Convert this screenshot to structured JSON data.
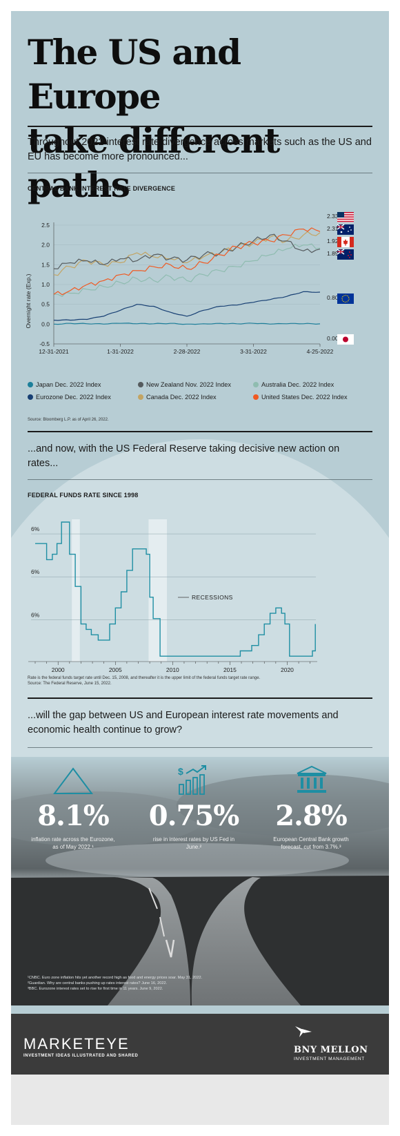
{
  "title_lines": [
    "The US and Europe",
    "take different paths"
  ],
  "intro_text": "Throughout 2022 interest rate divergence across markets such as the US and EU has become more pronounced...",
  "chart1": {
    "title": "CENTRAL BANK INTEREST RATE DIVERGENCE",
    "source": "Source: Bloomberg L.P. as of April 26, 2022."
  },
  "transition_text": "...and now, with the US Federal Reserve taking decisive new action on rates...",
  "chart2": {
    "title": "FEDERAL FUNDS RATE SINCE 1998",
    "recessions_label": "RECESSIONS",
    "note_line1": "Rate is the federal funds target rate until Dec. 15, 2008, and thereafter it is the upper limit of the federal funds target rate range.",
    "note_line2": "Source: The Federal Reserve, June 15, 2022."
  },
  "question_text": "...will the gap between US and European interest rate movements and economic health continue to grow?",
  "stats": [
    {
      "icon": "triangle-icon",
      "value": "8.1%",
      "desc": "inflation rate across the Eurozone, as of May 2022.¹"
    },
    {
      "icon": "rising-bar-chart-dollar-icon",
      "value": "0.75%",
      "desc": "rise in interest rates by US Fed in June.²"
    },
    {
      "icon": "bank-building-icon",
      "value": "2.8%",
      "desc": "European Central Bank growth forecast, cut from 3.7%.³"
    }
  ],
  "footnotes": [
    "¹CNBC. Euro zone inflation hits yet another record high as food and energy prices soar. May 31, 2022.",
    "²Guardian. Why are central banks pushing up rates interest rates? June 16, 2022.",
    "³BBC. Eurozone interest rates set to rise for first time in 11 years. June 9, 2022."
  ],
  "footer": {
    "left_brand": "MARKETEYE",
    "left_tagline": "INVESTMENT IDEAS ILLUSTRATED AND SHARED",
    "right_brand": "BNY MELLON",
    "right_tagline": "INVESTMENT MANAGEMENT"
  },
  "colors": {
    "background": "#b7cdd4",
    "japan": "#1d7f9a",
    "new_zealand": "#555b5e",
    "australia": "#8fbcb0",
    "eurozone": "#173f73",
    "canada": "#c3a463",
    "united_states": "#f05a22",
    "fed_line": "#1e8ea3"
  },
  "chart_data": [
    {
      "type": "line",
      "title": "CENTRAL BANK INTEREST RATE DIVERGENCE",
      "ylabel": "Overnight rate (Exp.)",
      "ylim": [
        -0.5,
        2.5
      ],
      "yticks": [
        "2.5",
        "2.0",
        "1.5",
        "1.0",
        "0.5",
        "0.0",
        "-0.5"
      ],
      "xticks": [
        "12-31-2021",
        "1-31-2022",
        "2-28-2022",
        "3-31-2022",
        "4-25-2022"
      ],
      "x": [
        "12-31-2021",
        "1-7-2022",
        "1-14-2022",
        "1-21-2022",
        "1-31-2022",
        "2-7-2022",
        "2-14-2022",
        "2-21-2022",
        "2-28-2022",
        "3-7-2022",
        "3-14-2022",
        "3-21-2022",
        "3-31-2022",
        "4-7-2022",
        "4-14-2022",
        "4-20-2022",
        "4-25-2022"
      ],
      "series": [
        {
          "name": "Japan Dec. 2022 Index",
          "color": "#1d7f9a",
          "end_label": "0.007",
          "values": [
            0.0,
            0.02,
            0.01,
            0.0,
            0.02,
            0.01,
            0.01,
            0.02,
            0.0,
            0.01,
            0.02,
            0.01,
            0.02,
            0.0,
            0.01,
            0.01,
            0.007
          ]
        },
        {
          "name": "New Zealand Nov. 2022 Index",
          "color": "#555b5e",
          "end_label": "1.894",
          "values": [
            1.4,
            1.55,
            1.6,
            1.5,
            1.65,
            1.6,
            1.75,
            1.65,
            1.62,
            1.75,
            1.8,
            1.95,
            2.1,
            2.25,
            2.1,
            1.85,
            1.894
          ]
        },
        {
          "name": "Australia Dec. 2022 Index",
          "color": "#8fbcb0",
          "end_label": "1.921",
          "values": [
            0.75,
            0.78,
            0.88,
            0.95,
            1.05,
            1.15,
            1.1,
            1.2,
            1.1,
            1.25,
            1.35,
            1.45,
            1.6,
            1.75,
            1.9,
            2.0,
            1.921
          ]
        },
        {
          "name": "Eurozone Dec. 2022 Index",
          "color": "#173f73",
          "end_label": "0.808",
          "values": [
            0.1,
            0.1,
            0.12,
            0.2,
            0.35,
            0.5,
            0.45,
            0.3,
            0.2,
            0.35,
            0.45,
            0.48,
            0.55,
            0.62,
            0.7,
            0.82,
            0.808
          ]
        },
        {
          "name": "Canada Dec. 2022 Index",
          "color": "#c3a463",
          "end_label": "2.310",
          "values": [
            1.25,
            1.45,
            1.6,
            1.5,
            1.55,
            1.8,
            1.7,
            1.65,
            1.55,
            1.7,
            1.8,
            1.95,
            2.05,
            2.2,
            2.1,
            2.25,
            2.31
          ]
        },
        {
          "name": "United States Dec. 2022 Index",
          "color": "#f05a22",
          "end_label": "2.338",
          "values": [
            0.75,
            0.85,
            1.0,
            1.1,
            1.25,
            1.35,
            1.45,
            1.5,
            1.4,
            1.55,
            1.75,
            1.95,
            2.05,
            2.1,
            2.25,
            2.4,
            2.338
          ]
        }
      ]
    },
    {
      "type": "line",
      "title": "FEDERAL FUNDS RATE SINCE 1998",
      "xlim": [
        1998,
        2022.5
      ],
      "xticks": [
        "2000",
        "2005",
        "2010",
        "2015",
        "2020"
      ],
      "yticks": [
        "6%",
        "6%",
        "6%"
      ],
      "ylim": [
        0,
        6.5
      ],
      "recessions": [
        [
          2001.2,
          2001.9
        ],
        [
          2007.9,
          2009.5
        ]
      ],
      "x": [
        1998.0,
        1998.8,
        1999.0,
        1999.5,
        1999.9,
        2000.3,
        2000.5,
        2001.0,
        2001.5,
        2002.0,
        2002.9,
        2003.5,
        2004.0,
        2004.5,
        2005.0,
        2005.5,
        2006.0,
        2006.5,
        2007.0,
        2007.7,
        2008.0,
        2008.3,
        2008.9,
        2015.9,
        2016.9,
        2017.5,
        2018.0,
        2018.5,
        2019.0,
        2019.5,
        2019.8,
        2020.2,
        2022.0,
        2022.2,
        2022.45
      ],
      "series": [
        {
          "name": "",
          "color": "#1e8ea3",
          "values": [
            5.5,
            5.5,
            4.75,
            5.0,
            5.5,
            6.5,
            6.5,
            5.0,
            3.5,
            1.75,
            1.25,
            1.0,
            1.0,
            1.75,
            2.5,
            3.25,
            4.25,
            5.25,
            5.25,
            5.0,
            3.0,
            2.0,
            0.25,
            0.5,
            0.75,
            1.25,
            1.75,
            2.25,
            2.5,
            2.25,
            1.75,
            0.25,
            0.25,
            0.5,
            1.75
          ]
        }
      ]
    }
  ]
}
